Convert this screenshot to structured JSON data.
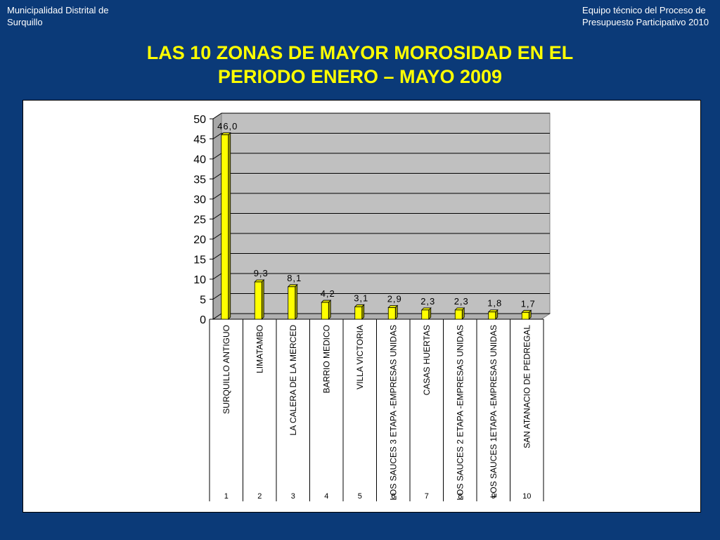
{
  "header": {
    "left_line1": "Municipalidad Distrital de",
    "left_line2": "Surquillo",
    "right_line1": "Equipo técnico del Proceso de",
    "right_line2": "Presupuesto Participativo 2010"
  },
  "title_line1": "LAS 10 ZONAS DE MAYOR MOROSIDAD EN EL",
  "title_line2": "PERIODO ENERO – MAYO 2009",
  "colors": {
    "background": "#0b3a78",
    "title": "#ffff00",
    "bar": "#ffff00",
    "plot_area": "#c0c0c0"
  },
  "chart_data": {
    "type": "bar",
    "categories": [
      "SURQUILLO ANTIGUO",
      "LIMATAMBO",
      "LA CALERA DE LA MERCED",
      "BARRIO MEDICO",
      "VILLA VICTORIA",
      "LOS SAUCES 3 ETAPA -EMPRESAS UNIDAS",
      "CASAS HUERTAS",
      "LOS SAUCES 2 ETAPA -EMPRESAS UNIDAS",
      "LOS SAUCES 1ETAPA -EMPRESAS UNIDAS",
      "SAN ATANACIO DE PEDREGAL"
    ],
    "category_numbers": [
      "1",
      "2",
      "3",
      "4",
      "5",
      "6",
      "7",
      "8",
      "9",
      "10"
    ],
    "values": [
      46.0,
      9.3,
      8.1,
      4.2,
      3.1,
      2.9,
      2.3,
      2.3,
      1.8,
      1.7
    ],
    "value_labels": [
      "46,0",
      "9,3",
      "8,1",
      "4,2",
      "3,1",
      "2,9",
      "2,3",
      "2,3",
      "1,8",
      "1,7"
    ],
    "y_ticks": [
      "0",
      "5",
      "10",
      "15",
      "20",
      "25",
      "30",
      "35",
      "40",
      "45",
      "50"
    ],
    "ylim": [
      0,
      50
    ],
    "grid": true,
    "legend": "none"
  }
}
